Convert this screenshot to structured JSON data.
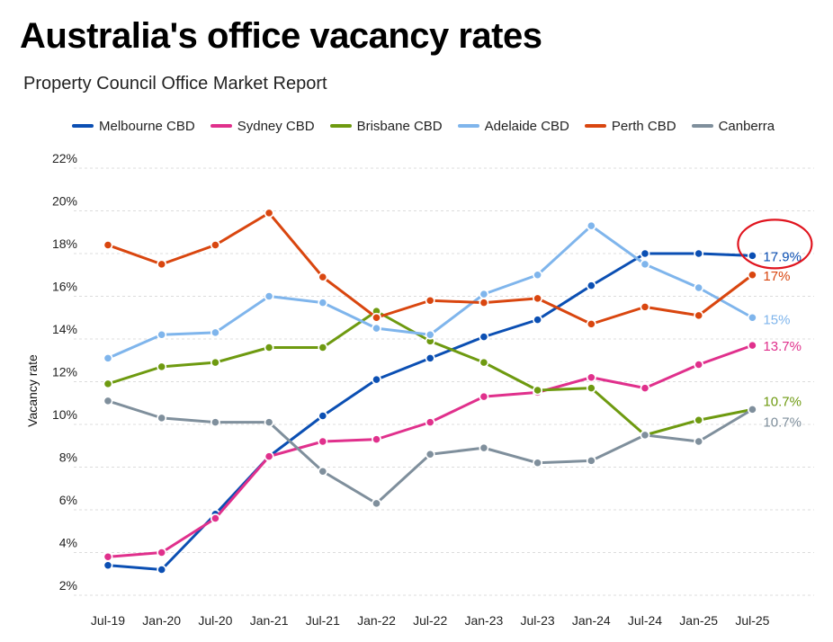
{
  "title": "Australia's office vacancy rates",
  "subtitle": "Property Council Office Market Report",
  "chart_data": {
    "type": "line",
    "title": "Australia's office vacancy rates",
    "subtitle": "Property Council Office Market Report",
    "xlabel": "",
    "ylabel": "Vacancy rate",
    "x": [
      "Jul-19",
      "Jan-20",
      "Jul-20",
      "Jan-21",
      "Jul-21",
      "Jan-22",
      "Jul-22",
      "Jan-23",
      "Jul-23",
      "Jan-24",
      "Jul-24",
      "Jan-25",
      "Jul-25"
    ],
    "ylim": [
      2,
      22
    ],
    "yticks": [
      "2%",
      "4%",
      "6%",
      "8%",
      "10%",
      "12%",
      "14%",
      "16%",
      "18%",
      "20%",
      "22%"
    ],
    "grid": true,
    "legend_position": "top",
    "series": [
      {
        "name": "Melbourne CBD",
        "color": "#0b4fb3",
        "values": [
          3.4,
          3.2,
          5.8,
          8.5,
          10.4,
          12.1,
          13.1,
          14.1,
          14.9,
          16.5,
          18.0,
          18.0,
          17.9
        ],
        "end_label": "17.9%"
      },
      {
        "name": "Sydney CBD",
        "color": "#e0308c",
        "values": [
          3.8,
          4.0,
          5.6,
          8.5,
          9.2,
          9.3,
          10.1,
          11.3,
          11.5,
          12.2,
          11.7,
          12.8,
          13.7
        ],
        "end_label": "13.7%"
      },
      {
        "name": "Brisbane CBD",
        "color": "#6e9a10",
        "values": [
          11.9,
          12.7,
          12.9,
          13.6,
          13.6,
          15.3,
          13.9,
          12.9,
          11.6,
          11.7,
          9.5,
          10.2,
          10.7
        ],
        "end_label": "10.7%"
      },
      {
        "name": "Adelaide CBD",
        "color": "#7fb5ec",
        "values": [
          13.1,
          14.2,
          14.3,
          16.0,
          15.7,
          14.5,
          14.2,
          16.1,
          17.0,
          19.3,
          17.5,
          16.4,
          15.0
        ],
        "end_label": "15%"
      },
      {
        "name": "Perth CBD",
        "color": "#d9460f",
        "values": [
          18.4,
          17.5,
          18.4,
          19.9,
          16.9,
          15.0,
          15.8,
          15.7,
          15.9,
          14.7,
          15.5,
          15.1,
          17.0
        ],
        "end_label": "17%"
      },
      {
        "name": "Canberra",
        "color": "#7f8f9c",
        "values": [
          11.1,
          10.3,
          10.1,
          10.1,
          7.8,
          6.3,
          8.6,
          8.9,
          8.2,
          8.3,
          9.5,
          9.2,
          10.7
        ],
        "end_label": "10.7%"
      }
    ],
    "annotations": [
      {
        "type": "circle",
        "series": "Melbourne CBD",
        "point": "Jul-25",
        "color": "#e0141e"
      }
    ]
  }
}
